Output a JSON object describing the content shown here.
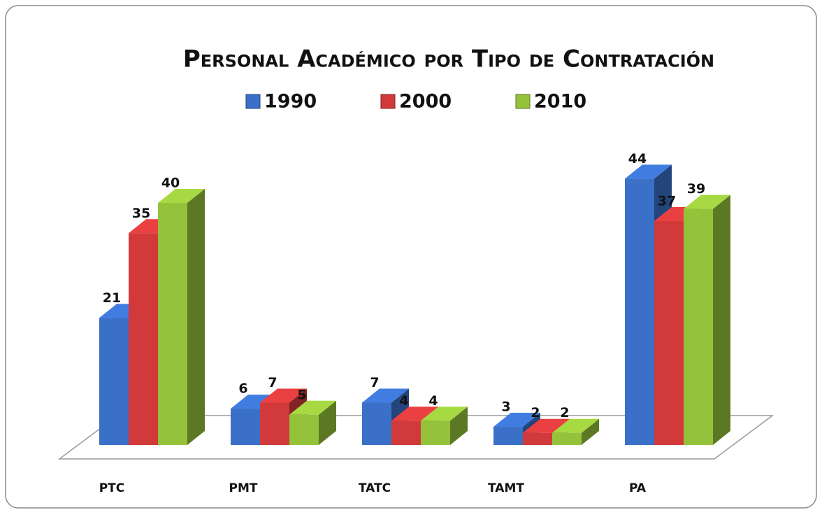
{
  "chart_data": {
    "type": "bar3d",
    "title": "Personal Académico por Tipo de Contratación",
    "categories": [
      "PTC",
      "PMT",
      "TATC",
      "TAMT",
      "PA"
    ],
    "series": [
      {
        "name": "1990",
        "color": "#3a70c8",
        "values": [
          21,
          6,
          7,
          3,
          44
        ]
      },
      {
        "name": "2000",
        "color": "#d2393a",
        "values": [
          35,
          7,
          4,
          2,
          37
        ]
      },
      {
        "name": "2010",
        "color": "#95c23b",
        "values": [
          40,
          5,
          4,
          2,
          39
        ]
      }
    ]
  }
}
